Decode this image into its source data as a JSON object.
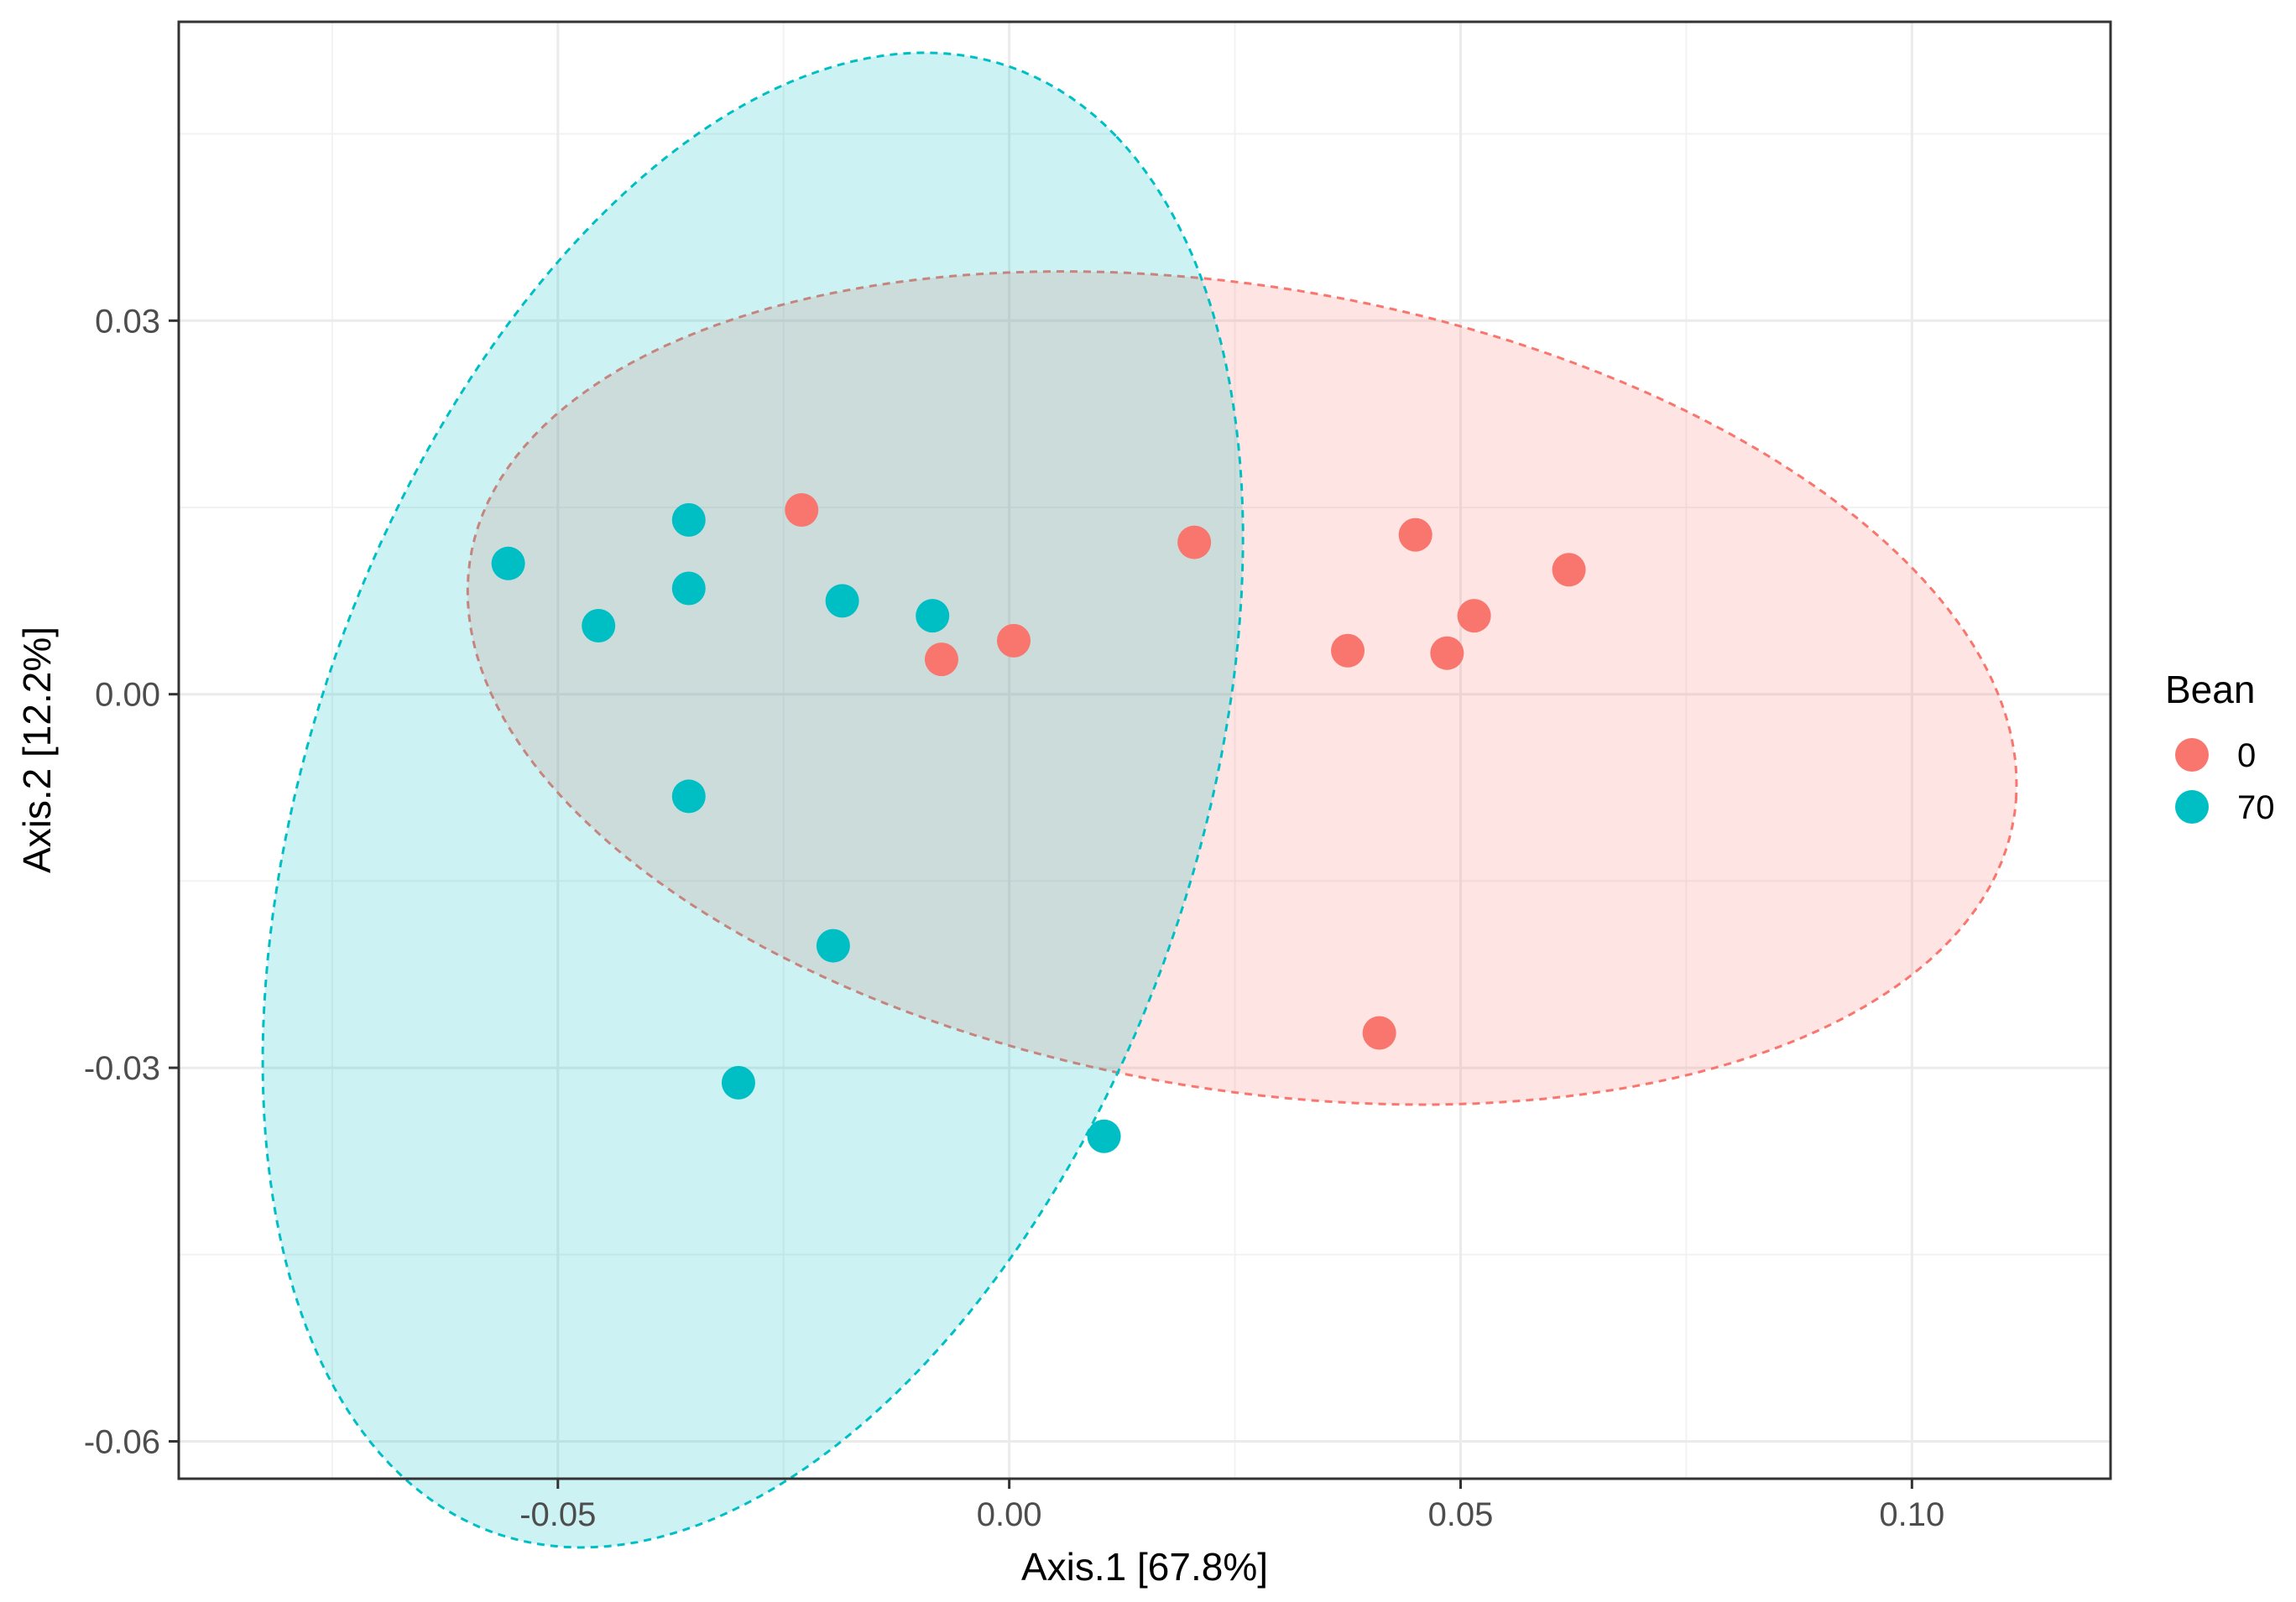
{
  "chart_data": {
    "type": "scatter",
    "title": "",
    "xlabel": "Axis.1   [67.8%]",
    "ylabel": "Axis.2   [12.2%]",
    "xlim": [
      -0.092,
      0.122
    ],
    "ylim": [
      -0.063,
      0.054
    ],
    "x_ticks": [
      -0.05,
      0.0,
      0.05,
      0.1
    ],
    "x_tick_labels": [
      "-0.05",
      "0.00",
      "0.05",
      "0.10"
    ],
    "y_ticks": [
      -0.06,
      -0.03,
      0.0,
      0.03
    ],
    "y_tick_labels": [
      "-0.06",
      "-0.03",
      "0.00",
      "0.03"
    ],
    "grid": true,
    "legend": {
      "title": "Bean",
      "position": "right"
    },
    "series": [
      {
        "name": "0",
        "color": "#F8766D",
        "points": [
          {
            "x": -0.023,
            "y": 0.0148
          },
          {
            "x": -0.0075,
            "y": 0.0028
          },
          {
            "x": 0.0005,
            "y": 0.0043
          },
          {
            "x": 0.0205,
            "y": 0.0122
          },
          {
            "x": 0.0375,
            "y": 0.0035
          },
          {
            "x": 0.045,
            "y": 0.0128
          },
          {
            "x": 0.0485,
            "y": 0.0033
          },
          {
            "x": 0.0515,
            "y": 0.0063
          },
          {
            "x": 0.062,
            "y": 0.01
          },
          {
            "x": 0.041,
            "y": -0.0272
          }
        ],
        "ellipse": {
          "cx": 0.0258,
          "cy": 0.0005,
          "rx": 0.0862,
          "ry": 0.0324,
          "angle_deg": -6
        }
      },
      {
        "name": "70",
        "color": "#00BFC4",
        "points": [
          {
            "x": -0.0555,
            "y": 0.0105
          },
          {
            "x": -0.0355,
            "y": 0.014
          },
          {
            "x": -0.0355,
            "y": 0.0085
          },
          {
            "x": -0.0455,
            "y": 0.0055
          },
          {
            "x": -0.0185,
            "y": 0.0075
          },
          {
            "x": -0.0085,
            "y": 0.0063
          },
          {
            "x": -0.0355,
            "y": -0.0082
          },
          {
            "x": -0.0195,
            "y": -0.0202
          },
          {
            "x": -0.03,
            "y": -0.0312
          },
          {
            "x": 0.0105,
            "y": -0.0355
          }
        ],
        "ellipse": {
          "cx": -0.0284,
          "cy": -0.0085,
          "rx": 0.0668,
          "ry": 0.0457,
          "angle_deg": 53
        }
      }
    ]
  }
}
